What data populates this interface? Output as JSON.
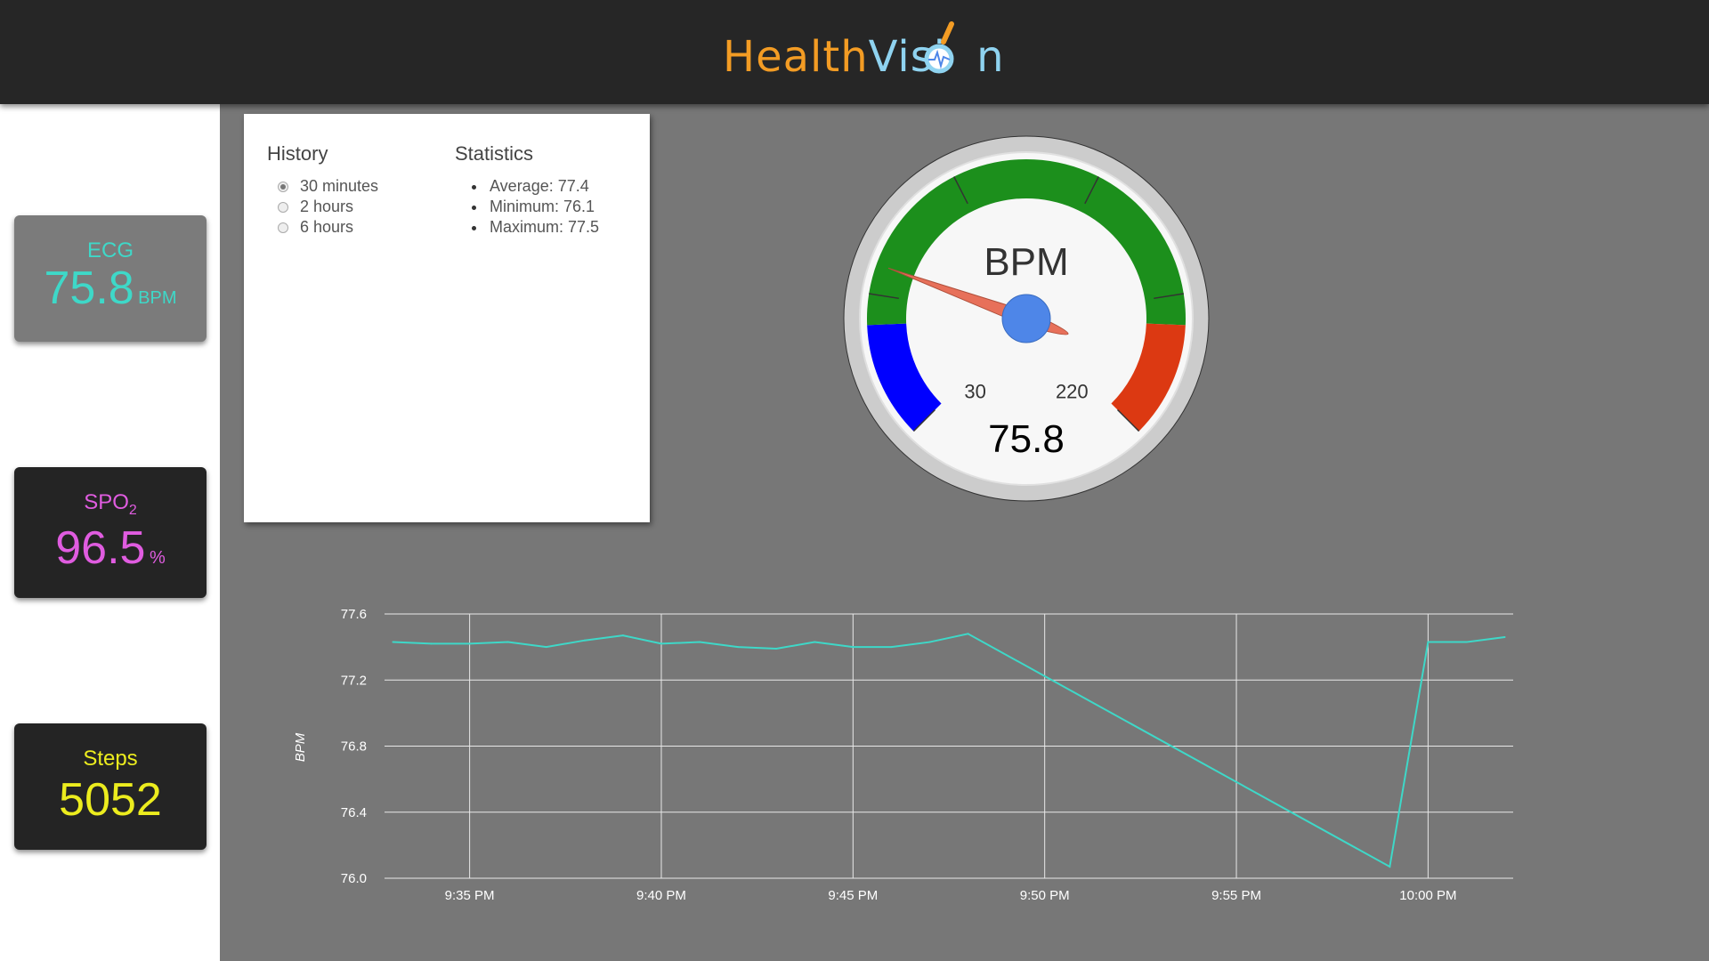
{
  "header": {
    "logo_part1": "Health",
    "logo_part2": "Visi",
    "logo_part3": "n"
  },
  "tiles": {
    "ecg": {
      "title": "ECG",
      "value": "75.8",
      "unit": "BPM"
    },
    "spo2": {
      "title": "SPO",
      "title_sub": "2",
      "value": "96.5",
      "unit": "%"
    },
    "steps": {
      "title": "Steps",
      "value": "5052"
    }
  },
  "history": {
    "title": "History",
    "options": [
      {
        "label": "30 minutes",
        "checked": true
      },
      {
        "label": "2 hours",
        "checked": false
      },
      {
        "label": "6 hours",
        "checked": false
      }
    ]
  },
  "statistics": {
    "title": "Statistics",
    "items": [
      "Average: 77.4",
      "Minimum: 76.1",
      "Maximum: 77.5"
    ]
  },
  "gauge": {
    "label": "BPM",
    "value": 75.8,
    "value_text": "75.8",
    "min": 30,
    "max": 220,
    "min_label": "30",
    "max_label": "220",
    "bands": [
      {
        "from": 30,
        "to": 60,
        "color": "#0000ff"
      },
      {
        "from": 60,
        "to": 190,
        "color": "#1c8f1c"
      },
      {
        "from": 190,
        "to": 220,
        "color": "#dc3912"
      }
    ],
    "needle_color": "#e7705a",
    "hub_color": "#4e86e8"
  },
  "chart_data": {
    "type": "line",
    "title": "",
    "xlabel": "",
    "ylabel": "BPM",
    "ylim": [
      76.0,
      77.6
    ],
    "y_ticks": [
      "77.6",
      "77.2",
      "76.8",
      "76.4",
      "76.0"
    ],
    "x_ticks": [
      "9:35 PM",
      "9:40 PM",
      "9:45 PM",
      "9:50 PM",
      "9:55 PM",
      "10:00 PM"
    ],
    "x_range": [
      "9:33 PM",
      "10:02 PM"
    ],
    "grid": true,
    "series": [
      {
        "color": "#3ed8c8",
        "points": [
          {
            "x": "9:33 PM",
            "y": 77.43
          },
          {
            "x": "9:34 PM",
            "y": 77.42
          },
          {
            "x": "9:35 PM",
            "y": 77.42
          },
          {
            "x": "9:36 PM",
            "y": 77.43
          },
          {
            "x": "9:37 PM",
            "y": 77.4
          },
          {
            "x": "9:38 PM",
            "y": 77.44
          },
          {
            "x": "9:39 PM",
            "y": 77.47
          },
          {
            "x": "9:40 PM",
            "y": 77.42
          },
          {
            "x": "9:41 PM",
            "y": 77.43
          },
          {
            "x": "9:42 PM",
            "y": 77.4
          },
          {
            "x": "9:43 PM",
            "y": 77.39
          },
          {
            "x": "9:44 PM",
            "y": 77.43
          },
          {
            "x": "9:45 PM",
            "y": 77.4
          },
          {
            "x": "9:46 PM",
            "y": 77.4
          },
          {
            "x": "9:47 PM",
            "y": 77.43
          },
          {
            "x": "9:48 PM",
            "y": 77.48
          },
          {
            "x": "9:59 PM",
            "y": 76.07
          },
          {
            "x": "10:00 PM",
            "y": 77.43
          },
          {
            "x": "10:01 PM",
            "y": 77.43
          },
          {
            "x": "10:02 PM",
            "y": 77.46
          }
        ]
      }
    ]
  }
}
